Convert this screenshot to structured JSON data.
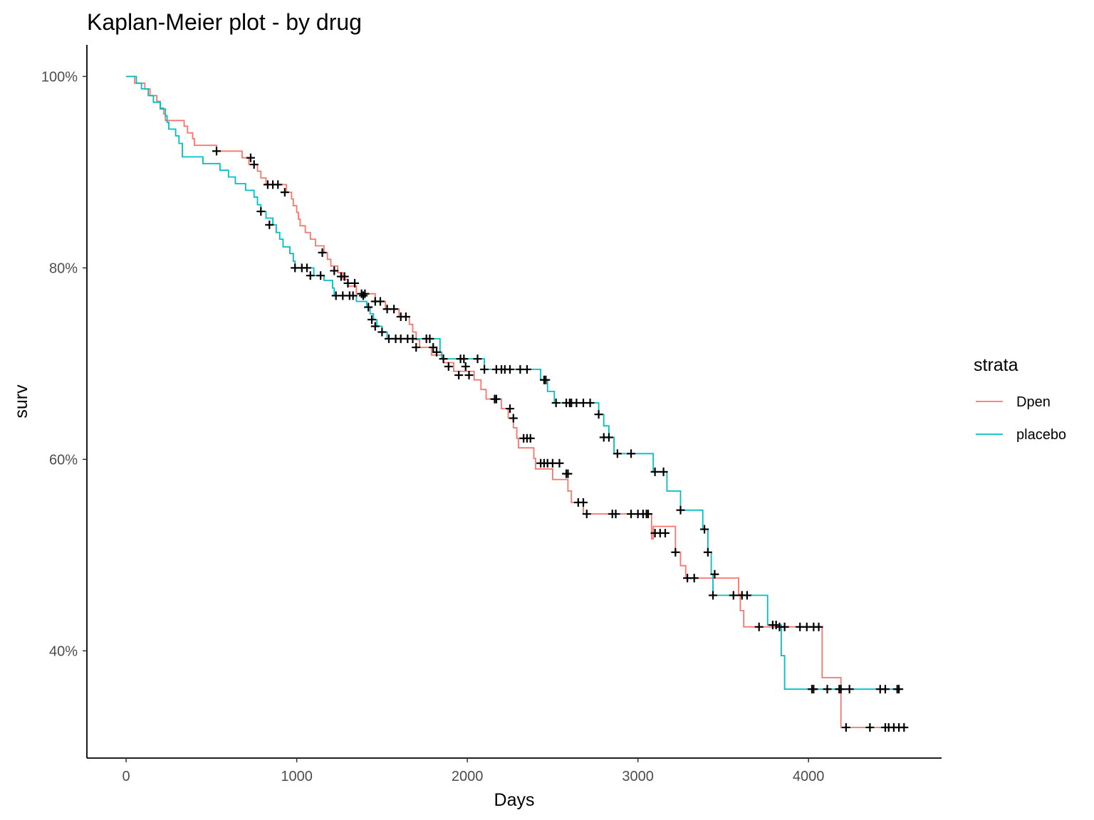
{
  "chart_data": {
    "type": "line",
    "subtype": "kaplan-meier step",
    "title": "Kaplan-Meier plot - by drug",
    "xlabel": "Days",
    "ylabel": "surv",
    "xlim": [
      -230,
      4780
    ],
    "ylim": [
      0.288,
      1.033
    ],
    "x_ticks": [
      0,
      1000,
      2000,
      3000,
      4000
    ],
    "x_tick_labels": [
      "0",
      "1000",
      "2000",
      "3000",
      "4000"
    ],
    "y_ticks": [
      0.4,
      0.6,
      0.8,
      1.0
    ],
    "y_tick_labels": [
      "40%",
      "60%",
      "80%",
      "100%"
    ],
    "grid": false,
    "legend": {
      "title": "strata",
      "position": "right"
    },
    "series": [
      {
        "name": "Dpen",
        "color": "#F8766D",
        "steps": [
          [
            0,
            1.0
          ],
          [
            50,
            0.993
          ],
          [
            110,
            0.987
          ],
          [
            140,
            0.98
          ],
          [
            180,
            0.974
          ],
          [
            200,
            0.967
          ],
          [
            220,
            0.961
          ],
          [
            230,
            0.954
          ],
          [
            340,
            0.948
          ],
          [
            360,
            0.941
          ],
          [
            390,
            0.935
          ],
          [
            400,
            0.928
          ],
          [
            530,
            0.922
          ],
          [
            680,
            0.915
          ],
          [
            720,
            0.908
          ],
          [
            770,
            0.901
          ],
          [
            790,
            0.894
          ],
          [
            820,
            0.887
          ],
          [
            940,
            0.879
          ],
          [
            970,
            0.872
          ],
          [
            980,
            0.865
          ],
          [
            1000,
            0.858
          ],
          [
            1010,
            0.851
          ],
          [
            1020,
            0.844
          ],
          [
            1050,
            0.837
          ],
          [
            1080,
            0.83
          ],
          [
            1110,
            0.823
          ],
          [
            1160,
            0.816
          ],
          [
            1180,
            0.809
          ],
          [
            1200,
            0.802
          ],
          [
            1240,
            0.795
          ],
          [
            1270,
            0.788
          ],
          [
            1300,
            0.781
          ],
          [
            1350,
            0.773
          ],
          [
            1460,
            0.765
          ],
          [
            1520,
            0.757
          ],
          [
            1600,
            0.749
          ],
          [
            1660,
            0.741
          ],
          [
            1680,
            0.733
          ],
          [
            1700,
            0.725
          ],
          [
            1720,
            0.717
          ],
          [
            1790,
            0.709
          ],
          [
            1860,
            0.701
          ],
          [
            1920,
            0.692
          ],
          [
            2040,
            0.683
          ],
          [
            2080,
            0.673
          ],
          [
            2110,
            0.663
          ],
          [
            2200,
            0.653
          ],
          [
            2240,
            0.643
          ],
          [
            2270,
            0.633
          ],
          [
            2290,
            0.622
          ],
          [
            2300,
            0.612
          ],
          [
            2390,
            0.601
          ],
          [
            2400,
            0.59
          ],
          [
            2500,
            0.579
          ],
          [
            2590,
            0.567
          ],
          [
            2610,
            0.555
          ],
          [
            2680,
            0.543
          ],
          [
            3090,
            0.53
          ],
          [
            3080,
            0.517
          ],
          [
            3220,
            0.503
          ],
          [
            3250,
            0.489
          ],
          [
            3280,
            0.476
          ],
          [
            3590,
            0.459
          ],
          [
            3600,
            0.442
          ],
          [
            3620,
            0.425
          ],
          [
            4080,
            0.372
          ],
          [
            4190,
            0.32
          ]
        ],
        "censored": [
          [
            530,
            0.922
          ],
          [
            730,
            0.915
          ],
          [
            750,
            0.908
          ],
          [
            830,
            0.887
          ],
          [
            860,
            0.887
          ],
          [
            890,
            0.887
          ],
          [
            930,
            0.879
          ],
          [
            1150,
            0.816
          ],
          [
            1220,
            0.797
          ],
          [
            1260,
            0.791
          ],
          [
            1280,
            0.791
          ],
          [
            1300,
            0.784
          ],
          [
            1340,
            0.784
          ],
          [
            1380,
            0.773
          ],
          [
            1400,
            0.773
          ],
          [
            1460,
            0.765
          ],
          [
            1490,
            0.765
          ],
          [
            1530,
            0.757
          ],
          [
            1570,
            0.757
          ],
          [
            1610,
            0.749
          ],
          [
            1640,
            0.749
          ],
          [
            1700,
            0.717
          ],
          [
            1800,
            0.717
          ],
          [
            1860,
            0.705
          ],
          [
            1890,
            0.697
          ],
          [
            1950,
            0.688
          ],
          [
            1990,
            0.697
          ],
          [
            2010,
            0.688
          ],
          [
            2160,
            0.663
          ],
          [
            2170,
            0.663
          ],
          [
            2250,
            0.653
          ],
          [
            2270,
            0.643
          ],
          [
            2330,
            0.622
          ],
          [
            2350,
            0.622
          ],
          [
            2370,
            0.622
          ],
          [
            2430,
            0.596
          ],
          [
            2450,
            0.596
          ],
          [
            2470,
            0.596
          ],
          [
            2500,
            0.596
          ],
          [
            2540,
            0.596
          ],
          [
            2580,
            0.585
          ],
          [
            2590,
            0.585
          ],
          [
            2650,
            0.555
          ],
          [
            2680,
            0.555
          ],
          [
            2700,
            0.543
          ],
          [
            2850,
            0.543
          ],
          [
            2870,
            0.543
          ],
          [
            2960,
            0.543
          ],
          [
            3000,
            0.543
          ],
          [
            3030,
            0.543
          ],
          [
            3050,
            0.543
          ],
          [
            3060,
            0.543
          ],
          [
            3100,
            0.523
          ],
          [
            3130,
            0.523
          ],
          [
            3160,
            0.523
          ],
          [
            3220,
            0.503
          ],
          [
            3290,
            0.476
          ],
          [
            3330,
            0.476
          ],
          [
            3710,
            0.425
          ],
          [
            3830,
            0.425
          ],
          [
            3860,
            0.425
          ],
          [
            3950,
            0.425
          ],
          [
            3990,
            0.425
          ],
          [
            4030,
            0.425
          ],
          [
            4060,
            0.425
          ],
          [
            4220,
            0.32
          ],
          [
            4360,
            0.32
          ],
          [
            4450,
            0.32
          ],
          [
            4470,
            0.32
          ],
          [
            4500,
            0.32
          ],
          [
            4530,
            0.32
          ],
          [
            4560,
            0.32
          ]
        ]
      },
      {
        "name": "placebo",
        "color": "#00BFC4",
        "steps": [
          [
            0,
            1.0
          ],
          [
            60,
            0.993
          ],
          [
            90,
            0.987
          ],
          [
            130,
            0.98
          ],
          [
            160,
            0.973
          ],
          [
            200,
            0.966
          ],
          [
            230,
            0.959
          ],
          [
            240,
            0.952
          ],
          [
            250,
            0.945
          ],
          [
            290,
            0.938
          ],
          [
            310,
            0.93
          ],
          [
            330,
            0.916
          ],
          [
            450,
            0.909
          ],
          [
            550,
            0.902
          ],
          [
            600,
            0.895
          ],
          [
            640,
            0.888
          ],
          [
            700,
            0.881
          ],
          [
            750,
            0.874
          ],
          [
            770,
            0.866
          ],
          [
            790,
            0.859
          ],
          [
            820,
            0.852
          ],
          [
            860,
            0.845
          ],
          [
            880,
            0.837
          ],
          [
            900,
            0.83
          ],
          [
            920,
            0.822
          ],
          [
            960,
            0.815
          ],
          [
            980,
            0.807
          ],
          [
            990,
            0.8
          ],
          [
            1100,
            0.792
          ],
          [
            1160,
            0.787
          ],
          [
            1210,
            0.779
          ],
          [
            1220,
            0.771
          ],
          [
            1350,
            0.765
          ],
          [
            1410,
            0.759
          ],
          [
            1430,
            0.752
          ],
          [
            1450,
            0.746
          ],
          [
            1470,
            0.739
          ],
          [
            1500,
            0.733
          ],
          [
            1530,
            0.726
          ],
          [
            1840,
            0.712
          ],
          [
            1850,
            0.705
          ],
          [
            2100,
            0.694
          ],
          [
            2430,
            0.683
          ],
          [
            2470,
            0.671
          ],
          [
            2510,
            0.659
          ],
          [
            2770,
            0.647
          ],
          [
            2800,
            0.635
          ],
          [
            2830,
            0.623
          ],
          [
            2860,
            0.606
          ],
          [
            3090,
            0.587
          ],
          [
            3170,
            0.567
          ],
          [
            3250,
            0.547
          ],
          [
            3380,
            0.527
          ],
          [
            3410,
            0.503
          ],
          [
            3430,
            0.48
          ],
          [
            3440,
            0.458
          ],
          [
            3760,
            0.427
          ],
          [
            3840,
            0.395
          ],
          [
            3860,
            0.36
          ]
        ],
        "censored": [
          [
            790,
            0.859
          ],
          [
            840,
            0.845
          ],
          [
            990,
            0.8
          ],
          [
            1030,
            0.8
          ],
          [
            1060,
            0.8
          ],
          [
            1080,
            0.792
          ],
          [
            1140,
            0.792
          ],
          [
            1230,
            0.771
          ],
          [
            1270,
            0.771
          ],
          [
            1310,
            0.771
          ],
          [
            1330,
            0.771
          ],
          [
            1390,
            0.771
          ],
          [
            1420,
            0.759
          ],
          [
            1440,
            0.746
          ],
          [
            1460,
            0.739
          ],
          [
            1500,
            0.733
          ],
          [
            1540,
            0.726
          ],
          [
            1580,
            0.726
          ],
          [
            1610,
            0.726
          ],
          [
            1650,
            0.726
          ],
          [
            1680,
            0.726
          ],
          [
            1760,
            0.726
          ],
          [
            1780,
            0.726
          ],
          [
            1820,
            0.712
          ],
          [
            1960,
            0.705
          ],
          [
            1980,
            0.705
          ],
          [
            2060,
            0.705
          ],
          [
            2100,
            0.694
          ],
          [
            2170,
            0.694
          ],
          [
            2200,
            0.694
          ],
          [
            2220,
            0.694
          ],
          [
            2250,
            0.694
          ],
          [
            2310,
            0.694
          ],
          [
            2350,
            0.694
          ],
          [
            2450,
            0.683
          ],
          [
            2460,
            0.683
          ],
          [
            2520,
            0.659
          ],
          [
            2580,
            0.659
          ],
          [
            2600,
            0.659
          ],
          [
            2610,
            0.659
          ],
          [
            2640,
            0.659
          ],
          [
            2680,
            0.659
          ],
          [
            2720,
            0.659
          ],
          [
            2770,
            0.647
          ],
          [
            2800,
            0.623
          ],
          [
            2830,
            0.623
          ],
          [
            2880,
            0.606
          ],
          [
            2960,
            0.606
          ],
          [
            3100,
            0.587
          ],
          [
            3150,
            0.587
          ],
          [
            3250,
            0.547
          ],
          [
            3390,
            0.527
          ],
          [
            3410,
            0.503
          ],
          [
            3440,
            0.458
          ],
          [
            3450,
            0.48
          ],
          [
            3560,
            0.458
          ],
          [
            3610,
            0.458
          ],
          [
            3640,
            0.458
          ],
          [
            3790,
            0.427
          ],
          [
            3810,
            0.427
          ],
          [
            4020,
            0.36
          ],
          [
            4030,
            0.36
          ],
          [
            4110,
            0.36
          ],
          [
            4180,
            0.36
          ],
          [
            4190,
            0.36
          ],
          [
            4240,
            0.36
          ],
          [
            4420,
            0.36
          ],
          [
            4450,
            0.36
          ],
          [
            4520,
            0.36
          ],
          [
            4530,
            0.36
          ]
        ]
      }
    ]
  }
}
